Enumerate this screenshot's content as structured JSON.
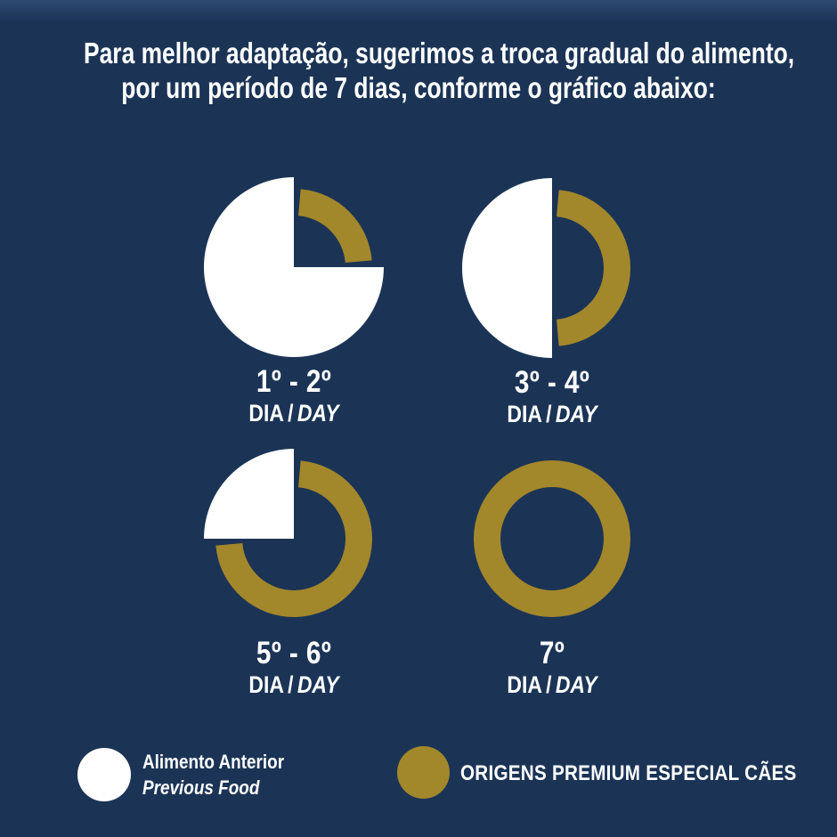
{
  "colors": {
    "background": "#1B3456",
    "gold": "#A3872B",
    "white": "#FFFFFF",
    "text": "#FFFFFF"
  },
  "title": {
    "line1": "Para melhor adaptação, sugerimos a troca gradual do alimento,",
    "line2": "por um período de 7 dias, conforme o gráfico abaixo:"
  },
  "chart_data": {
    "type": "pie",
    "title": "Troca gradual do alimento por um período de 7 dias",
    "unit": "percent",
    "charts": [
      {
        "id": "day-1-2",
        "label": "1º - 2º",
        "sublabel": {
          "dia": "DIA",
          "sep": "/",
          "day": "DAY"
        },
        "slices": [
          {
            "name": "Alimento Anterior / Previous Food",
            "value": 75
          },
          {
            "name": "ORIGENS PREMIUM ESPECIAL CÃES",
            "value": 25
          }
        ]
      },
      {
        "id": "day-3-4",
        "label": "3º - 4º",
        "sublabel": {
          "dia": "DIA",
          "sep": "/",
          "day": "DAY"
        },
        "slices": [
          {
            "name": "Alimento Anterior / Previous Food",
            "value": 50
          },
          {
            "name": "ORIGENS PREMIUM ESPECIAL CÃES",
            "value": 50
          }
        ]
      },
      {
        "id": "day-5-6",
        "label": "5º - 6º",
        "sublabel": {
          "dia": "DIA",
          "sep": "/",
          "day": "DAY"
        },
        "slices": [
          {
            "name": "Alimento Anterior / Previous Food",
            "value": 25
          },
          {
            "name": "ORIGENS PREMIUM ESPECIAL CÃES",
            "value": 75
          }
        ]
      },
      {
        "id": "day-7",
        "label": "7º",
        "sublabel": {
          "dia": "DIA",
          "sep": "/",
          "day": "DAY"
        },
        "slices": [
          {
            "name": "Alimento Anterior / Previous Food",
            "value": 0
          },
          {
            "name": "ORIGENS PREMIUM ESPECIAL CÃES",
            "value": 100
          }
        ]
      }
    ],
    "legend": [
      {
        "label": "Alimento Anterior",
        "sublabel": "Previous Food",
        "color": "#FFFFFF"
      },
      {
        "label": "ORIGENS PREMIUM ESPECIAL CÃES",
        "sublabel": "",
        "color": "#A3872B"
      }
    ],
    "legend_position": "bottom",
    "grid": false
  }
}
